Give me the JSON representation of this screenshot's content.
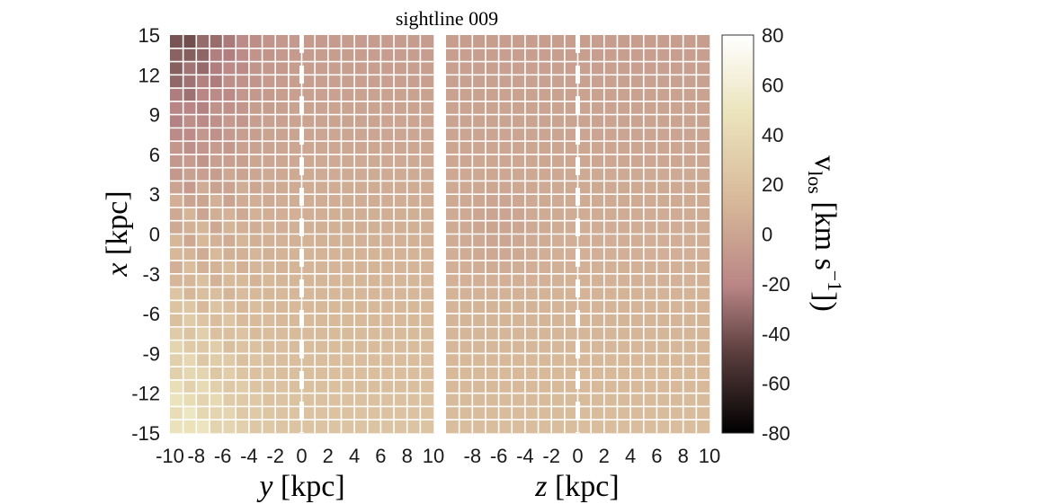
{
  "chart_data": {
    "type": "heatmap",
    "title": "sightline 009",
    "panels": [
      {
        "name": "y-panel",
        "xlabel_var": "y",
        "xlabel_unit": " [kpc]",
        "xlim": [
          -10,
          10
        ],
        "xticks": [
          "-10",
          "-8",
          "-6",
          "-4",
          "-2",
          "0",
          "2",
          "4",
          "6",
          "8",
          "10"
        ]
      },
      {
        "name": "z-panel",
        "xlabel_var": "z",
        "xlabel_unit": " [kpc]",
        "xlim": [
          -10,
          10
        ],
        "xticks": [
          "-8",
          "-6",
          "-4",
          "-2",
          "0",
          "2",
          "4",
          "6",
          "8",
          "10"
        ]
      }
    ],
    "ylabel_var": "x",
    "ylabel_unit": " [kpc]",
    "ylim": [
      -15,
      15
    ],
    "yticks": [
      "15",
      "12",
      "9",
      "6",
      "3",
      "0",
      "-3",
      "-6",
      "-9",
      "-12",
      "-15"
    ],
    "sightline": {
      "x": 0,
      "style": "white dashed"
    },
    "grid": true,
    "grid_color": "#ffffff",
    "colorbar": {
      "label_var": "v",
      "label_sub": "los",
      "label_unit": " [km s",
      "label_exp": "−1",
      "label_close": "])",
      "range": [
        -80,
        80
      ],
      "ticks": [
        "80",
        "60",
        "40",
        "20",
        "0",
        "-20",
        "-40",
        "-60",
        "-80"
      ],
      "colormap": [
        "#000000",
        "#5a3d3d",
        "#b98585",
        "#d7b899",
        "#ebe3bb",
        "#ffffff"
      ]
    }
  }
}
